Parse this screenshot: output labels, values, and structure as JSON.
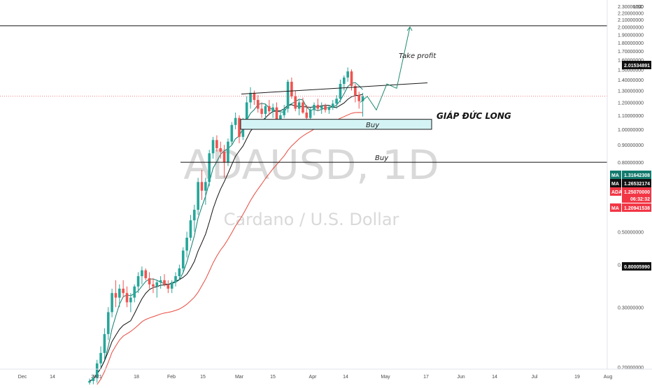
{
  "chart_data": {
    "type": "candlestick",
    "watermark": {
      "symbol": "ADAUSD, 1D",
      "subtitle": "Cardano / U.S. Dollar"
    },
    "currency_label": "USD",
    "y_axis": {
      "range": [
        0.2,
        2.4
      ],
      "ticks": [
        "0.20000000",
        "0.30000000",
        "0.40000000",
        "0.50000000",
        "0.60000000",
        "0.70000000",
        "0.80000000",
        "0.90000000",
        "1.00000000",
        "1.10000000",
        "1.20000000",
        "1.30000000",
        "1.40000000",
        "1.50000000",
        "1.60000000",
        "1.70000000",
        "1.80000000",
        "1.90000000",
        "2.00000000",
        "2.10000000",
        "2.20000000",
        "2.30000000",
        "2.40000000"
      ]
    },
    "x_axis": {
      "labels": [
        "Dec",
        "14",
        "2021",
        "18",
        "Feb",
        "15",
        "Mar",
        "15",
        "Apr",
        "14",
        "May",
        "17",
        "Jun",
        "14",
        "Jul",
        "19",
        "Aug"
      ]
    },
    "candles": [
      [
        0.18,
        0.185,
        0.175,
        0.182
      ],
      [
        0.182,
        0.19,
        0.178,
        0.186
      ],
      [
        0.186,
        0.21,
        0.18,
        0.205
      ],
      [
        0.205,
        0.23,
        0.2,
        0.22
      ],
      [
        0.22,
        0.26,
        0.21,
        0.25
      ],
      [
        0.25,
        0.3,
        0.24,
        0.29
      ],
      [
        0.29,
        0.34,
        0.28,
        0.33
      ],
      [
        0.33,
        0.36,
        0.3,
        0.32
      ],
      [
        0.32,
        0.35,
        0.3,
        0.34
      ],
      [
        0.34,
        0.36,
        0.32,
        0.33
      ],
      [
        0.33,
        0.345,
        0.3,
        0.31
      ],
      [
        0.31,
        0.33,
        0.29,
        0.32
      ],
      [
        0.32,
        0.35,
        0.31,
        0.345
      ],
      [
        0.345,
        0.38,
        0.33,
        0.37
      ],
      [
        0.37,
        0.395,
        0.35,
        0.385
      ],
      [
        0.385,
        0.39,
        0.36,
        0.365
      ],
      [
        0.365,
        0.38,
        0.34,
        0.35
      ],
      [
        0.35,
        0.365,
        0.33,
        0.345
      ],
      [
        0.345,
        0.36,
        0.32,
        0.355
      ],
      [
        0.355,
        0.37,
        0.34,
        0.36
      ],
      [
        0.36,
        0.375,
        0.345,
        0.35
      ],
      [
        0.35,
        0.36,
        0.33,
        0.34
      ],
      [
        0.34,
        0.36,
        0.33,
        0.355
      ],
      [
        0.355,
        0.38,
        0.345,
        0.37
      ],
      [
        0.37,
        0.4,
        0.36,
        0.39
      ],
      [
        0.39,
        0.45,
        0.38,
        0.44
      ],
      [
        0.44,
        0.5,
        0.42,
        0.48
      ],
      [
        0.48,
        0.56,
        0.47,
        0.54
      ],
      [
        0.54,
        0.6,
        0.5,
        0.58
      ],
      [
        0.58,
        0.72,
        0.56,
        0.7
      ],
      [
        0.7,
        0.76,
        0.62,
        0.66
      ],
      [
        0.66,
        0.72,
        0.6,
        0.7
      ],
      [
        0.7,
        0.87,
        0.68,
        0.85
      ],
      [
        0.85,
        0.95,
        0.82,
        0.93
      ],
      [
        0.93,
        0.96,
        0.86,
        0.88
      ],
      [
        0.88,
        0.92,
        0.82,
        0.86
      ],
      [
        0.86,
        0.9,
        0.72,
        0.8
      ],
      [
        0.8,
        0.94,
        0.78,
        0.92
      ],
      [
        0.92,
        1.05,
        0.9,
        1.03
      ],
      [
        1.03,
        1.12,
        1.0,
        1.08
      ],
      [
        1.08,
        1.1,
        0.91,
        0.95
      ],
      [
        0.95,
        1.08,
        0.93,
        1.06
      ],
      [
        1.06,
        1.25,
        1.04,
        1.2
      ],
      [
        1.2,
        1.33,
        1.15,
        1.28
      ],
      [
        1.28,
        1.3,
        1.18,
        1.22
      ],
      [
        1.22,
        1.26,
        1.12,
        1.15
      ],
      [
        1.15,
        1.2,
        1.08,
        1.11
      ],
      [
        1.11,
        1.19,
        1.06,
        1.17
      ],
      [
        1.17,
        1.22,
        1.1,
        1.13
      ],
      [
        1.13,
        1.19,
        1.08,
        1.16
      ],
      [
        1.16,
        1.2,
        1.05,
        1.07
      ],
      [
        1.07,
        1.12,
        1.03,
        1.1
      ],
      [
        1.1,
        1.18,
        1.08,
        1.15
      ],
      [
        1.15,
        1.4,
        1.12,
        1.38
      ],
      [
        1.38,
        1.42,
        1.23,
        1.25
      ],
      [
        1.25,
        1.3,
        1.13,
        1.15
      ],
      [
        1.15,
        1.22,
        1.1,
        1.2
      ],
      [
        1.2,
        1.24,
        1.11,
        1.12
      ],
      [
        1.12,
        1.18,
        1.06,
        1.08
      ],
      [
        1.08,
        1.16,
        1.06,
        1.14
      ],
      [
        1.14,
        1.2,
        1.1,
        1.18
      ],
      [
        1.18,
        1.23,
        1.13,
        1.15
      ],
      [
        1.15,
        1.2,
        1.11,
        1.17
      ],
      [
        1.17,
        1.19,
        1.12,
        1.14
      ],
      [
        1.14,
        1.18,
        1.11,
        1.16
      ],
      [
        1.16,
        1.22,
        1.14,
        1.19
      ],
      [
        1.19,
        1.26,
        1.15,
        1.23
      ],
      [
        1.23,
        1.4,
        1.2,
        1.36
      ],
      [
        1.36,
        1.44,
        1.3,
        1.42
      ],
      [
        1.42,
        1.52,
        1.38,
        1.48
      ],
      [
        1.48,
        1.5,
        1.3,
        1.34
      ],
      [
        1.34,
        1.36,
        1.2,
        1.26
      ],
      [
        1.26,
        1.29,
        1.15,
        1.21
      ],
      [
        1.21,
        1.28,
        1.09,
        1.25
      ]
    ],
    "moving_averages": [
      {
        "name": "MA",
        "value": "1.31642308",
        "color": "#137a6d"
      },
      {
        "name": "MA",
        "value": "1.26532174",
        "color": "#111111"
      },
      {
        "name": "MA",
        "value": "1.20941538",
        "color": "#e84a3f"
      }
    ],
    "price_tags": [
      {
        "label": "",
        "value": "2.01534891",
        "color": "#111111"
      },
      {
        "label": "MA",
        "value": "1.31642308",
        "color": "#137a6d"
      },
      {
        "label": "MA",
        "value": "1.26532174",
        "color": "#111111"
      },
      {
        "label": "ADAUSD",
        "value": "1.25070000",
        "extra": "06:32:32",
        "color": "#f23645"
      },
      {
        "label": "MA",
        "value": "1.20941538",
        "color": "#f23645"
      },
      {
        "label": "",
        "value": "0.80005990",
        "color": "#111111"
      }
    ],
    "annotations": {
      "take_profit": "Take profit",
      "buy_zone": "Buy",
      "buy_line": "Buy",
      "author": "GIÁP ĐỨC LONG"
    },
    "levels": {
      "take_profit": 2.01534891,
      "buy_line": 0.8000599,
      "buy_zone": [
        1.0,
        1.07
      ]
    }
  }
}
